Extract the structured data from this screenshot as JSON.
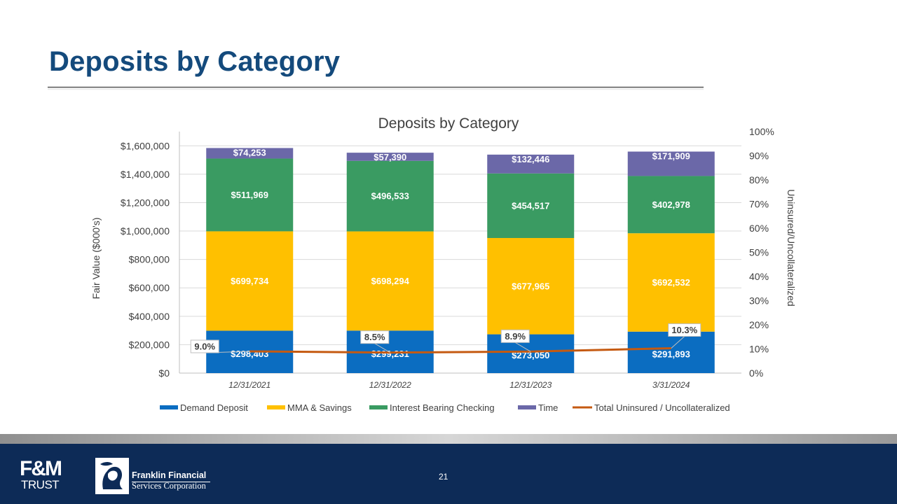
{
  "slide": {
    "title": "Deposits by Category",
    "page_number": "21"
  },
  "footer": {
    "fm_logo_line1": "F&M",
    "fm_logo_line2": "TRUST",
    "company_line1": "Franklin Financial",
    "company_line2": "Services Corporation"
  },
  "colors": {
    "title": "#144a7c",
    "demand": "#0b6dc1",
    "mma": "#ffc000",
    "ibc": "#3a9b62",
    "time": "#6b68a8",
    "line": "#c55a11",
    "footer": "#0d2b57"
  },
  "chart_data": {
    "type": "bar",
    "stacked": true,
    "title": "Deposits by Category",
    "ylabel": "Fair Value ($000's)",
    "y2label": "Uninsured/Uncollateralized",
    "ylim": [
      0,
      1700000
    ],
    "y2lim": [
      0,
      100
    ],
    "yticks": [
      "$0",
      "$200,000",
      "$400,000",
      "$600,000",
      "$800,000",
      "$1,000,000",
      "$1,200,000",
      "$1,400,000",
      "$1,600,000"
    ],
    "ytick_values": [
      0,
      200000,
      400000,
      600000,
      800000,
      1000000,
      1200000,
      1400000,
      1600000
    ],
    "y2ticks": [
      "0%",
      "10%",
      "20%",
      "30%",
      "40%",
      "50%",
      "60%",
      "70%",
      "80%",
      "90%",
      "100%"
    ],
    "y2tick_values": [
      0,
      10,
      20,
      30,
      40,
      50,
      60,
      70,
      80,
      90,
      100
    ],
    "categories": [
      "12/31/2021",
      "12/31/2022",
      "12/31/2023",
      "3/31/2024"
    ],
    "series": [
      {
        "name": "Demand Deposit",
        "values": [
          298403,
          299231,
          273050,
          291893
        ],
        "labels": [
          "$298,403",
          "$299,231",
          "$273,050",
          "$291,893"
        ]
      },
      {
        "name": "MMA & Savings",
        "values": [
          699734,
          698294,
          677965,
          692532
        ],
        "labels": [
          "$699,734",
          "$698,294",
          "$677,965",
          "$692,532"
        ]
      },
      {
        "name": "Interest Bearing Checking",
        "values": [
          511969,
          496533,
          454517,
          402978
        ],
        "labels": [
          "$511,969",
          "$496,533",
          "$454,517",
          "$402,978"
        ]
      },
      {
        "name": "Time",
        "values": [
          74253,
          57390,
          132446,
          171909
        ],
        "labels": [
          "$74,253",
          "$57,390",
          "$132,446",
          "$171,909"
        ]
      }
    ],
    "line_series": {
      "name": "Total Uninsured / Uncollateralized",
      "axis": "secondary",
      "values": [
        9.0,
        8.5,
        8.9,
        10.3
      ],
      "labels": [
        "9.0%",
        "8.5%",
        "8.9%",
        "10.3%"
      ]
    },
    "legend_position": "bottom"
  }
}
